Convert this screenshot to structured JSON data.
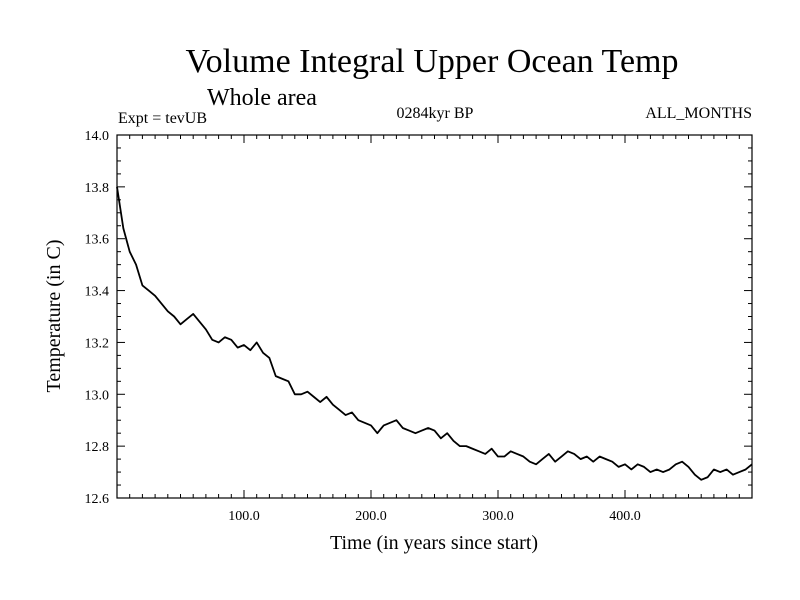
{
  "chart_data": {
    "type": "line",
    "title": "Volume Integral Upper Ocean Temp",
    "subtitle": "Whole area",
    "annotations": {
      "left": "Expt = tevUB",
      "center": "0284kyr BP",
      "right": "ALL_MONTHS"
    },
    "xlabel": "Time (in years since start)",
    "ylabel": "Temperature (in C)",
    "xlim": [
      0,
      500
    ],
    "ylim": [
      12.6,
      14.0
    ],
    "x_ticks": [
      100,
      200,
      300,
      400
    ],
    "x_tick_labels": [
      "100.0",
      "200.0",
      "300.0",
      "400.0"
    ],
    "y_ticks": [
      12.6,
      12.8,
      13.0,
      13.2,
      13.4,
      13.6,
      13.8,
      14.0
    ],
    "y_tick_labels": [
      "12.6",
      "12.8",
      "13.0",
      "13.2",
      "13.4",
      "13.6",
      "13.8",
      "14.0"
    ],
    "grid": false,
    "series": [
      {
        "color": "#000000",
        "x": [
          0,
          5,
          10,
          15,
          20,
          25,
          30,
          35,
          40,
          45,
          50,
          55,
          60,
          65,
          70,
          75,
          80,
          85,
          90,
          95,
          100,
          105,
          110,
          115,
          120,
          125,
          130,
          135,
          140,
          145,
          150,
          155,
          160,
          165,
          170,
          175,
          180,
          185,
          190,
          195,
          200,
          205,
          210,
          215,
          220,
          225,
          230,
          235,
          240,
          245,
          250,
          255,
          260,
          265,
          270,
          275,
          280,
          285,
          290,
          295,
          300,
          305,
          310,
          315,
          320,
          325,
          330,
          335,
          340,
          345,
          350,
          355,
          360,
          365,
          370,
          375,
          380,
          385,
          390,
          395,
          400,
          405,
          410,
          415,
          420,
          425,
          430,
          435,
          440,
          445,
          450,
          455,
          460,
          465,
          470,
          475,
          480,
          485,
          490,
          495,
          500
        ],
        "y": [
          13.8,
          13.64,
          13.55,
          13.5,
          13.42,
          13.4,
          13.38,
          13.35,
          13.32,
          13.3,
          13.27,
          13.29,
          13.31,
          13.28,
          13.25,
          13.21,
          13.2,
          13.22,
          13.21,
          13.18,
          13.19,
          13.17,
          13.2,
          13.16,
          13.14,
          13.07,
          13.06,
          13.05,
          13.0,
          13.0,
          13.01,
          12.99,
          12.97,
          12.99,
          12.96,
          12.94,
          12.92,
          12.93,
          12.9,
          12.89,
          12.88,
          12.85,
          12.88,
          12.89,
          12.9,
          12.87,
          12.86,
          12.85,
          12.86,
          12.87,
          12.86,
          12.83,
          12.85,
          12.82,
          12.8,
          12.8,
          12.79,
          12.78,
          12.77,
          12.79,
          12.76,
          12.76,
          12.78,
          12.77,
          12.76,
          12.74,
          12.73,
          12.75,
          12.77,
          12.74,
          12.76,
          12.78,
          12.77,
          12.75,
          12.76,
          12.74,
          12.76,
          12.75,
          12.74,
          12.72,
          12.73,
          12.71,
          12.73,
          12.72,
          12.7,
          12.71,
          12.7,
          12.71,
          12.73,
          12.74,
          12.72,
          12.69,
          12.67,
          12.68,
          12.71,
          12.7,
          12.71,
          12.69,
          12.7,
          12.71,
          12.73
        ]
      }
    ]
  }
}
